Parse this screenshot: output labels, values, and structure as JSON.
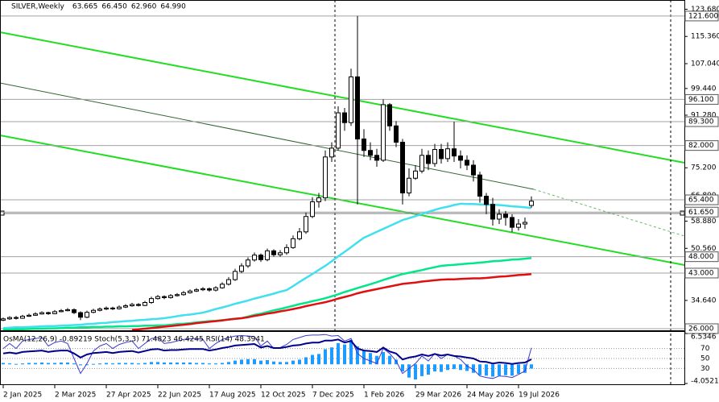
{
  "chart_data": [
    {
      "type": "candlestick",
      "title": "SILVER,Weekly",
      "ohlc_header": [
        "63.665",
        "66.450",
        "62.960",
        "64.990"
      ],
      "categories": [
        "2 Jan 2025",
        null,
        null,
        null,
        null,
        null,
        null,
        null,
        "2 Mar 2025",
        null,
        null,
        null,
        null,
        null,
        null,
        null,
        "27 Apr 2025",
        null,
        null,
        null,
        null,
        null,
        null,
        null,
        "22 Jun 2025",
        null,
        null,
        null,
        null,
        null,
        null,
        null,
        "17 Aug 2025",
        null,
        null,
        null,
        null,
        null,
        null,
        null,
        "12 Oct 2025",
        null,
        null,
        null,
        null,
        null,
        null,
        null,
        "7 Dec 2025",
        null,
        null,
        null,
        null,
        null,
        null,
        null,
        "1 Feb 2026",
        null,
        null,
        null,
        null,
        null,
        null,
        null,
        "29 Mar 2026",
        null,
        null,
        null,
        null,
        null,
        null,
        null,
        "24 May 2026",
        null,
        null,
        null,
        null,
        null,
        null,
        null,
        "19 Jul 2026",
        null,
        null
      ],
      "open": [
        28.6,
        29.0,
        29.4,
        29.2,
        29.8,
        30.1,
        30.5,
        30.9,
        30.6,
        31.2,
        31.5,
        31.8,
        30.9,
        29.5,
        31.0,
        31.6,
        32.0,
        32.3,
        32.1,
        32.6,
        33.0,
        33.4,
        33.1,
        34.0,
        35.2,
        35.8,
        35.5,
        36.1,
        36.4,
        37.0,
        37.5,
        37.9,
        38.2,
        37.8,
        38.5,
        39.6,
        41.0,
        43.5,
        45.2,
        47.0,
        48.5,
        47.1,
        49.8,
        48.6,
        49.2,
        50.8,
        53.5,
        55.6,
        60.3,
        64.8,
        66.0,
        78.5,
        81.2,
        92.0,
        89.0,
        103.0,
        84.0,
        80.5,
        79.0,
        77.5,
        94.5,
        88.0,
        83.0,
        67.5,
        72.0,
        74.2,
        79.0,
        76.5,
        80.8,
        78.0,
        81.0,
        78.8,
        77.5,
        76.0,
        73.0,
        66.5,
        64.0,
        59.5,
        61.0,
        60.0,
        57.0,
        58.0,
        63.665
      ],
      "high": [
        29.4,
        29.8,
        29.9,
        30.2,
        30.6,
        31.0,
        31.3,
        31.2,
        31.7,
        32.0,
        32.3,
        32.2,
        31.3,
        31.5,
        32.1,
        32.5,
        32.8,
        32.7,
        33.1,
        33.5,
        33.9,
        33.8,
        34.5,
        35.8,
        36.3,
        36.2,
        36.6,
        36.9,
        37.5,
        38.0,
        38.4,
        38.7,
        38.6,
        39.0,
        40.2,
        41.8,
        44.3,
        46.0,
        47.8,
        49.3,
        49.0,
        50.5,
        50.3,
        50.0,
        51.8,
        54.5,
        56.8,
        61.5,
        66.2,
        67.5,
        80.5,
        83.0,
        94.0,
        93.5,
        105.5,
        121.6,
        87.0,
        83.0,
        81.0,
        96.1,
        95.0,
        89.5,
        84.0,
        75.0,
        76.0,
        81.0,
        80.5,
        82.5,
        82.5,
        83.0,
        89.3,
        80.5,
        79.0,
        77.5,
        74.0,
        67.5,
        66.0,
        62.5,
        62.0,
        61.0,
        59.5,
        60.0,
        66.45
      ],
      "low": [
        28.3,
        28.7,
        28.8,
        29.0,
        29.6,
        29.9,
        30.3,
        30.2,
        30.4,
        31.0,
        31.3,
        30.5,
        28.6,
        29.2,
        30.7,
        31.3,
        31.7,
        31.7,
        31.8,
        32.3,
        32.7,
        32.8,
        32.9,
        33.6,
        34.9,
        35.0,
        35.2,
        35.8,
        36.1,
        36.7,
        37.2,
        37.5,
        37.3,
        37.4,
        38.2,
        39.2,
        40.6,
        43.0,
        44.6,
        46.5,
        46.4,
        46.6,
        48.0,
        48.0,
        48.6,
        50.4,
        53.0,
        55.0,
        59.8,
        63.0,
        65.0,
        77.0,
        80.5,
        86.5,
        88.0,
        64.0,
        78.5,
        77.5,
        75.5,
        77.0,
        86.5,
        81.5,
        64.0,
        66.5,
        71.5,
        73.5,
        74.5,
        75.5,
        76.5,
        77.0,
        77.0,
        75.0,
        74.5,
        71.0,
        64.5,
        61.0,
        57.5,
        58.0,
        57.5,
        55.5,
        56.0,
        56.5,
        62.96
      ],
      "close": [
        29.0,
        29.4,
        29.2,
        29.8,
        30.1,
        30.5,
        30.9,
        30.6,
        31.2,
        31.5,
        31.8,
        30.9,
        29.5,
        31.0,
        31.6,
        32.0,
        32.3,
        32.1,
        32.6,
        33.0,
        33.4,
        33.1,
        34.0,
        35.2,
        35.8,
        35.5,
        36.1,
        36.4,
        37.0,
        37.5,
        37.9,
        38.2,
        37.8,
        38.5,
        39.6,
        41.0,
        43.5,
        45.2,
        47.0,
        48.5,
        47.1,
        49.8,
        48.6,
        49.2,
        50.8,
        53.5,
        55.6,
        60.3,
        64.8,
        66.0,
        78.5,
        81.2,
        92.0,
        89.0,
        103.0,
        84.0,
        80.5,
        79.0,
        77.5,
        94.5,
        88.0,
        83.0,
        67.5,
        72.0,
        74.2,
        79.0,
        76.5,
        80.8,
        78.0,
        81.0,
        78.8,
        77.5,
        76.0,
        73.0,
        66.5,
        64.0,
        59.5,
        61.0,
        60.0,
        57.0,
        58.0,
        58.5,
        64.99
      ],
      "series": [
        {
          "color": "#40e0f0",
          "values": [
            26.2,
            26.3,
            26.4,
            26.4,
            26.5,
            26.6,
            26.7,
            26.8,
            26.8,
            26.9,
            27.0,
            27.1,
            27.2,
            27.4,
            27.5,
            27.7,
            27.8,
            28.0,
            28.1,
            28.3,
            28.4,
            28.6,
            28.7,
            28.9,
            29.0,
            29.2,
            29.5,
            29.8,
            30.1,
            30.3,
            30.6,
            30.9,
            31.4,
            32.0,
            32.5,
            33.0,
            33.6,
            34.1,
            34.6,
            35.2,
            35.7,
            36.2,
            36.7,
            37.3,
            37.8,
            39.0,
            40.3,
            41.5,
            42.7,
            44.0,
            45.2,
            46.6,
            48.1,
            49.5,
            50.9,
            52.4,
            53.8,
            54.7,
            55.6,
            56.5,
            57.4,
            58.3,
            59.2,
            59.8,
            60.4,
            61.1,
            61.7,
            62.3,
            62.9,
            63.3,
            63.8,
            64.2,
            64.1,
            64.1,
            64.0,
            63.9,
            63.9,
            63.8,
            63.6,
            63.4,
            63.3,
            63.1,
            62.9
          ]
        },
        {
          "color": "#00e68a",
          "values": [
            25.7,
            25.7,
            25.8,
            25.8,
            25.9,
            26.0,
            26.0,
            26.1,
            26.1,
            26.2,
            26.3,
            26.3,
            26.4,
            26.4,
            26.5,
            26.5,
            26.6,
            26.6,
            26.7,
            26.7,
            26.8,
            26.8,
            26.9,
            26.9,
            27.0,
            27.0,
            27.2,
            27.4,
            27.5,
            27.7,
            27.9,
            28.1,
            28.3,
            28.4,
            28.6,
            28.8,
            29.0,
            29.2,
            29.7,
            30.2,
            30.6,
            31.1,
            31.6,
            32.0,
            32.5,
            33.0,
            33.5,
            33.9,
            34.4,
            34.8,
            35.3,
            35.9,
            36.5,
            37.2,
            37.8,
            38.4,
            39.0,
            39.6,
            40.2,
            40.9,
            41.5,
            42.1,
            42.7,
            43.1,
            43.5,
            43.9,
            44.4,
            44.8,
            45.2,
            45.4,
            45.5,
            45.7,
            45.9,
            46.0,
            46.2,
            46.4,
            46.6,
            46.7,
            46.9,
            47.1,
            47.2,
            47.4,
            47.6
          ]
        },
        {
          "color": "#e01010",
          "values": [
            null,
            null,
            null,
            null,
            null,
            null,
            null,
            null,
            null,
            null,
            null,
            null,
            null,
            null,
            null,
            null,
            null,
            null,
            null,
            null,
            25.6,
            25.8,
            26.0,
            26.2,
            26.4,
            26.6,
            26.8,
            27.0,
            27.2,
            27.4,
            27.7,
            27.9,
            28.1,
            28.3,
            28.5,
            28.8,
            29.0,
            29.2,
            29.5,
            29.9,
            30.2,
            30.6,
            30.9,
            31.3,
            31.6,
            32.0,
            32.4,
            32.9,
            33.3,
            33.7,
            34.1,
            34.6,
            35.2,
            35.7,
            36.2,
            36.8,
            37.3,
            37.7,
            38.1,
            38.5,
            38.9,
            39.3,
            39.7,
            39.9,
            40.1,
            40.4,
            40.6,
            40.8,
            41.0,
            41.1,
            41.1,
            41.2,
            41.3,
            41.4,
            41.4,
            41.5,
            41.7,
            41.9,
            42.0,
            42.2,
            42.4,
            42.5,
            42.7
          ]
        }
      ],
      "ylim": [
        25.5,
        126.5
      ],
      "yticks": [
        {
          "value": 123.68,
          "label": "123.680"
        },
        {
          "value": 115.36,
          "label": "115.360"
        },
        {
          "value": 107.04,
          "label": "107.040"
        },
        {
          "value": 99.44,
          "label": "99.440"
        },
        {
          "value": 91.28,
          "label": "91.280"
        },
        {
          "value": 75.2,
          "label": "75.200"
        },
        {
          "value": 66.8,
          "label": "66.800"
        },
        {
          "value": 58.88,
          "label": "58.880"
        },
        {
          "value": 50.56,
          "label": "50.560"
        },
        {
          "value": 34.64,
          "label": "34.640"
        }
      ],
      "levels": [
        {
          "value": 121.6,
          "label": "121.600"
        },
        {
          "value": 96.1,
          "label": "96.100"
        },
        {
          "value": 89.3,
          "label": "89.300"
        },
        {
          "value": 82.0,
          "label": "82.000"
        },
        {
          "value": 65.4,
          "label": "65.400"
        },
        {
          "value": 61.65,
          "label": "61.650"
        },
        {
          "value": 48.0,
          "label": "48.000"
        },
        {
          "value": 43.0,
          "label": "43.000"
        },
        {
          "value": 26.0,
          "label": "26.000"
        }
      ]
    },
    {
      "type": "oscillator",
      "title": "OsMA(12,26,9) -0.89219  Stoch(5,3,3) 71.4823 46.4245  RSI(14) 48.3941",
      "ylim": [
        -4.0521,
        6.5346
      ],
      "yticks": [
        6.5346,
        -4.0521
      ],
      "y2lim": [
        0,
        100
      ],
      "y2ticks": [
        70,
        50,
        30
      ],
      "series": [
        {
          "style": "histogram",
          "color": "#1e9bff",
          "values": [
            0.3,
            0.2,
            0.1,
            0.2,
            0.3,
            0.3,
            0.4,
            0.3,
            0.3,
            0.4,
            0.4,
            0.2,
            -0.2,
            -0.1,
            0.1,
            0.2,
            0.3,
            0.2,
            0.3,
            0.3,
            0.3,
            0.2,
            0.3,
            0.5,
            0.5,
            0.4,
            0.4,
            0.4,
            0.4,
            0.4,
            0.3,
            0.3,
            0.2,
            0.2,
            0.3,
            0.5,
            0.8,
            1.0,
            1.1,
            1.1,
            0.8,
            0.9,
            0.6,
            0.5,
            0.5,
            0.8,
            1.0,
            1.5,
            2.0,
            2.2,
            3.2,
            3.6,
            4.5,
            4.2,
            5.2,
            3.8,
            3.0,
            2.4,
            1.8,
            2.6,
            1.8,
            1.0,
            -1.5,
            -2.8,
            -3.2,
            -2.5,
            -2.2,
            -1.5,
            -1.6,
            -1.2,
            -1.0,
            -1.2,
            -1.4,
            -1.8,
            -2.3,
            -2.4,
            -2.6,
            -2.4,
            -2.3,
            -2.4,
            -2.0,
            -1.8,
            -0.89219
          ]
        },
        {
          "style": "line",
          "axis": "y2",
          "color": "#3a3ad0",
          "values": [
            70,
            80,
            70,
            85,
            88,
            90,
            92,
            75,
            82,
            85,
            80,
            50,
            20,
            40,
            65,
            75,
            80,
            70,
            78,
            82,
            85,
            70,
            80,
            90,
            92,
            80,
            82,
            85,
            88,
            90,
            90,
            88,
            70,
            80,
            88,
            92,
            95,
            96,
            95,
            94,
            75,
            85,
            70,
            72,
            78,
            88,
            92,
            96,
            97,
            97,
            98,
            95,
            96,
            85,
            90,
            60,
            50,
            45,
            40,
            70,
            60,
            45,
            20,
            30,
            40,
            55,
            45,
            60,
            50,
            58,
            55,
            48,
            35,
            28,
            15,
            12,
            10,
            15,
            14,
            12,
            18,
            25,
            71.4823
          ]
        },
        {
          "style": "line",
          "axis": "y2",
          "color": "#00008b",
          "values": [
            60,
            62,
            60,
            63,
            64,
            65,
            66,
            63,
            65,
            66,
            66,
            60,
            52,
            58,
            61,
            62,
            63,
            61,
            63,
            64,
            65,
            62,
            65,
            68,
            69,
            66,
            67,
            67,
            68,
            69,
            69,
            69,
            66,
            68,
            71,
            73,
            76,
            77,
            78,
            79,
            72,
            75,
            71,
            71,
            73,
            76,
            77,
            80,
            82,
            82,
            86,
            86,
            88,
            82,
            85,
            70,
            66,
            65,
            63,
            72,
            64,
            60,
            48,
            52,
            54,
            58,
            55,
            59,
            56,
            58,
            55,
            54,
            52,
            50,
            44,
            43,
            40,
            42,
            41,
            39,
            41,
            42,
            48.3941
          ]
        }
      ]
    }
  ]
}
